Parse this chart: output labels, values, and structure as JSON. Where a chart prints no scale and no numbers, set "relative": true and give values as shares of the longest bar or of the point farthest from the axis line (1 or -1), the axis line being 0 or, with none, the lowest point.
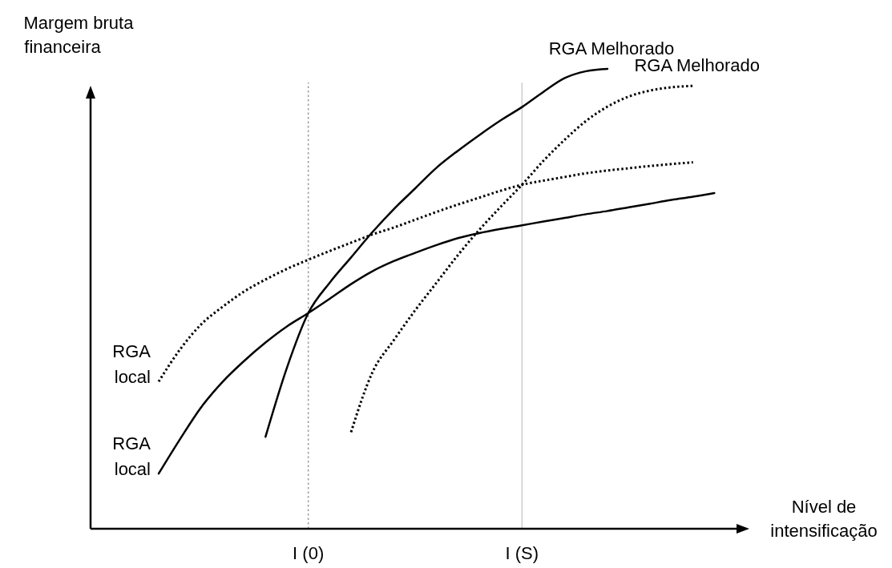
{
  "chart_data": {
    "type": "line",
    "relative": true,
    "xlabel": "Nível de intensificação",
    "ylabel": "Margem bruta financeira",
    "categories": [
      null,
      null,
      null,
      null,
      null,
      null,
      null,
      null,
      null,
      null,
      "I (0)",
      null,
      null,
      null,
      null,
      null,
      null,
      null,
      null,
      null,
      "I (S)",
      null,
      null,
      null,
      null,
      null,
      null,
      null,
      null,
      null,
      null
    ],
    "tick_labels": "x",
    "legend": false,
    "marker": "none",
    "series": [
      {
        "name": "RGA local",
        "color": "#000000",
        "line_style": "solid",
        "values": [
          null,
          null,
          null,
          0.12,
          0.195,
          0.265,
          0.32,
          0.365,
          0.405,
          0.44,
          0.469,
          0.5,
          0.532,
          0.56,
          0.582,
          0.6,
          0.617,
          0.632,
          0.643,
          0.652,
          0.66,
          0.668,
          0.676,
          0.684,
          0.691,
          0.699,
          0.707,
          0.715,
          0.722,
          0.73,
          null
        ]
      },
      {
        "name": "RGA local",
        "color": "#000000",
        "line_style": "dotted",
        "values": [
          null,
          null,
          null,
          0.32,
          0.39,
          0.445,
          0.483,
          0.516,
          0.542,
          0.565,
          0.585,
          0.604,
          0.622,
          0.64,
          0.655,
          0.672,
          0.689,
          0.705,
          0.72,
          0.735,
          0.748,
          0.757,
          0.765,
          0.773,
          0.779,
          0.784,
          0.789,
          0.793,
          0.797,
          null,
          null
        ]
      },
      {
        "name": "RGA Melhorado",
        "color": "#000000",
        "line_style": "solid",
        "values": [
          null,
          null,
          null,
          null,
          null,
          null,
          null,
          null,
          0.2,
          0.35,
          0.469,
          0.535,
          0.59,
          0.645,
          0.695,
          0.74,
          0.785,
          0.822,
          0.856,
          0.888,
          0.917,
          0.95,
          0.98,
          0.995,
          1,
          null,
          null,
          null,
          null,
          null,
          null
        ]
      },
      {
        "name": "RGA Melhorado",
        "color": "#000000",
        "line_style": "dotted",
        "values": [
          null,
          null,
          null,
          null,
          null,
          null,
          null,
          null,
          null,
          null,
          null,
          null,
          0.21,
          0.34,
          0.41,
          0.475,
          0.535,
          0.595,
          0.65,
          0.7,
          0.748,
          0.8,
          0.846,
          0.887,
          0.918,
          0.94,
          0.953,
          0.96,
          0.963,
          null,
          null
        ]
      }
    ],
    "ref_lines": [
      {
        "axis": "x",
        "value": "I (0)",
        "color": "#999999",
        "line_style": "dotted"
      },
      {
        "axis": "x",
        "value": "I (S)",
        "color": "#cccccc",
        "line_style": "solid"
      }
    ]
  }
}
